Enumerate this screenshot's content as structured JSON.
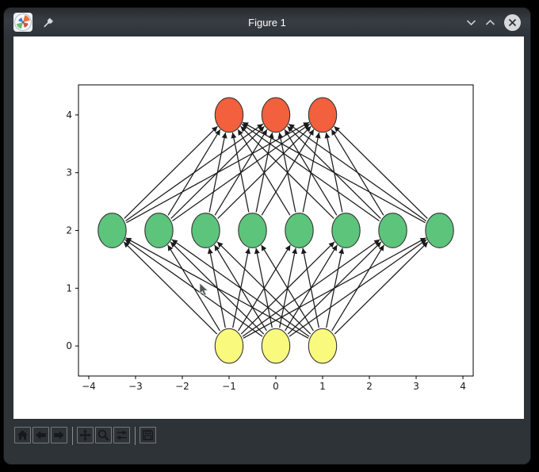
{
  "window": {
    "title": "Figure 1",
    "app_icon": "matplotlib-logo",
    "pin_icon": "pushpin",
    "controls": [
      "minimize",
      "maximize",
      "close"
    ]
  },
  "toolbar": {
    "groups": [
      [
        {
          "id": "home",
          "icon": "home-icon"
        },
        {
          "id": "back",
          "icon": "back-arrow-icon"
        },
        {
          "id": "forward",
          "icon": "forward-arrow-icon"
        }
      ],
      [
        {
          "id": "pan",
          "icon": "pan-arrows-icon"
        },
        {
          "id": "zoom",
          "icon": "magnifier-icon"
        },
        {
          "id": "configure-subplots",
          "icon": "sliders-icon"
        }
      ],
      [
        {
          "id": "save",
          "icon": "floppy-disk-icon"
        }
      ]
    ]
  },
  "chart_data": {
    "type": "scatter",
    "subtype": "neural-network-graph",
    "title": "",
    "xlabel": "",
    "ylabel": "",
    "xlim": [
      -4.22,
      4.22
    ],
    "ylim": [
      -0.52,
      4.52
    ],
    "xticks": [
      -4,
      -3,
      -2,
      -1,
      0,
      1,
      2,
      3,
      4
    ],
    "yticks": [
      0,
      1,
      2,
      3,
      4
    ],
    "grid": false,
    "node_radius_data_units": 0.3,
    "layers": [
      {
        "name": "input-layer",
        "y": 0,
        "x": [
          -1,
          0,
          1
        ],
        "color": "#f9f97e"
      },
      {
        "name": "hidden-layer",
        "y": 2,
        "x": [
          -3.5,
          -2.5,
          -1.5,
          -0.5,
          0.5,
          1.5,
          2.5,
          3.5
        ],
        "color": "#5dc47c"
      },
      {
        "name": "output-layer",
        "y": 4,
        "x": [
          -1,
          0,
          1
        ],
        "color": "#f2603d"
      }
    ],
    "edge_pairs": [
      [
        0,
        1
      ],
      [
        1,
        2
      ]
    ],
    "edge_style": "complete bipartite, arrowheads pointing at upper layer",
    "edge_color": "#1a1a1a",
    "node_edge_color": "#333333",
    "tick_color": "#1a1a1a"
  },
  "cursor": {
    "canvas_x": 234,
    "canvas_y": 310
  },
  "colors": {
    "window_bg": "#2e3338",
    "titlebar_text": "#fcfcfc",
    "canvas_bg": "#ffffff",
    "toolbar_icon": "#17191c",
    "button_border": "#767a7e",
    "close_circle": "#d7dadd"
  }
}
